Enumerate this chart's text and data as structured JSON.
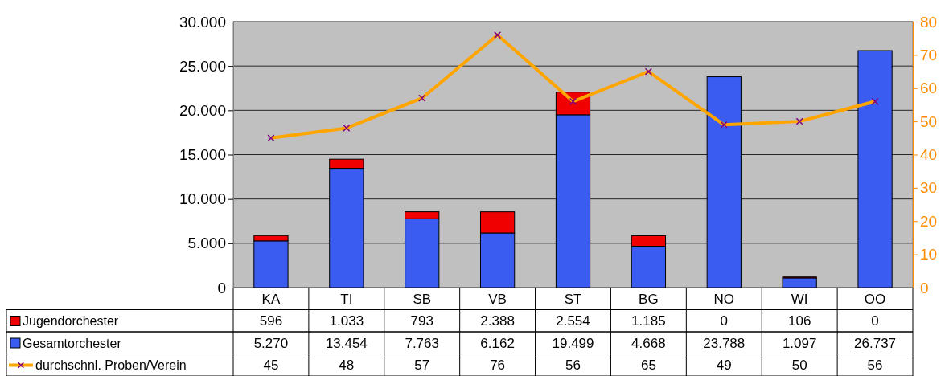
{
  "chart_data": {
    "type": "bar",
    "stacked": true,
    "categories": [
      "KA",
      "TI",
      "SB",
      "VB",
      "ST",
      "BG",
      "NO",
      "WI",
      "OO"
    ],
    "series": [
      {
        "name": "Gesamtorchester",
        "color": "#3a5cf0",
        "values": [
          5270,
          13454,
          7763,
          6162,
          19499,
          4668,
          23788,
          1097,
          26737
        ],
        "value_labels": [
          "5.270",
          "13.454",
          "7.763",
          "6.162",
          "19.499",
          "4.668",
          "23.788",
          "1.097",
          "26.737"
        ]
      },
      {
        "name": "Jugendorchester",
        "color": "#f00000",
        "values": [
          596,
          1033,
          793,
          2388,
          2554,
          1185,
          0,
          106,
          0
        ],
        "value_labels": [
          "596",
          "1.033",
          "793",
          "2.388",
          "2.554",
          "1.185",
          "0",
          "106",
          "0"
        ]
      },
      {
        "name": "durchschnl. Proben/Verein",
        "type": "line",
        "axis": "y2",
        "color": "#ffa500",
        "marker": "cross",
        "values": [
          45,
          48,
          57,
          76,
          56,
          65,
          49,
          50,
          56
        ],
        "value_labels": [
          "45",
          "48",
          "57",
          "76",
          "56",
          "65",
          "49",
          "50",
          "56"
        ]
      }
    ],
    "ylim": [
      0,
      30000
    ],
    "yticks": [
      {
        "value": 0,
        "label": "0"
      },
      {
        "value": 5000,
        "label": "5.000"
      },
      {
        "value": 10000,
        "label": "10.000"
      },
      {
        "value": 15000,
        "label": "15.000"
      },
      {
        "value": 20000,
        "label": "20.000"
      },
      {
        "value": 25000,
        "label": "25.000"
      },
      {
        "value": 30000,
        "label": "30.000"
      }
    ],
    "y2lim": [
      0,
      80
    ],
    "y2ticks": [
      0,
      10,
      20,
      30,
      40,
      50,
      60,
      70,
      80
    ],
    "grid": "y",
    "legend": "bottom"
  }
}
